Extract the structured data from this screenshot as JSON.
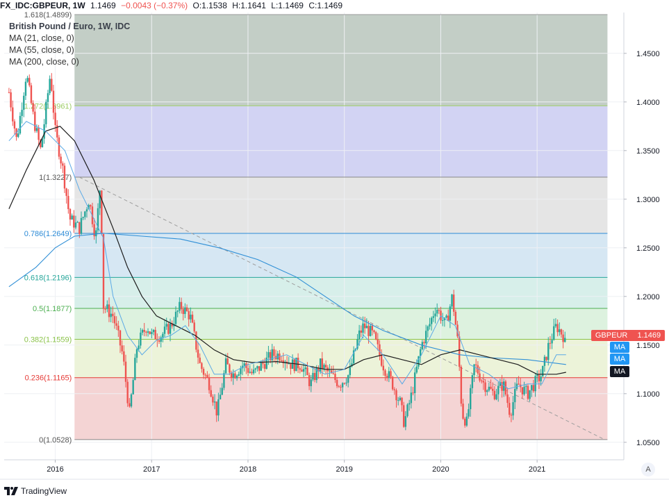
{
  "header": {
    "symbol": "FX_IDC:GBPEUR, 1W",
    "last": "1.1469",
    "change": "−0.0043 (−0.37%)",
    "open": "O:1.1538",
    "high": "H:1.1641",
    "low": "L:1.1469",
    "close": "C:1.1469"
  },
  "legend": {
    "title": "British Pound / Euro, 1W, IDC",
    "ma1": "MA (21, close, 0)",
    "ma2": "MA (55, close, 0)",
    "ma3": "MA (200, close, 0)"
  },
  "price_tag": {
    "symbol": "GBPEUR",
    "value": "1.1469"
  },
  "ma_tags": [
    "MA",
    "MA",
    "MA"
  ],
  "footer": {
    "brand": "TradingView"
  },
  "axis_mode_button": "A",
  "colors": {
    "up": "#26a69a",
    "down": "#ef5350",
    "ma21": "#5aa9e6",
    "ma55": "#1c1c1c",
    "ma200": "#2f8fd6",
    "price_tag": "#ef5350",
    "ma_tag": "#2196f3"
  },
  "chart_data": {
    "type": "candlestick",
    "title": "British Pound / Euro, 1W, IDC",
    "x_ticks": [
      "2016",
      "2017",
      "2018",
      "2019",
      "2020",
      "2021"
    ],
    "y_ticks": [
      "1.4500",
      "1.4000",
      "1.3500",
      "1.3000",
      "1.2500",
      "1.2000",
      "1.1500",
      "1.1000",
      "1.0500"
    ],
    "ylim": [
      1.032,
      1.492
    ],
    "fib_levels": [
      {
        "label": "1.618(1.4899)",
        "value": 1.4899,
        "band": "#c3cec6",
        "line": "#999999"
      },
      {
        "label": "1.272(1.3961)",
        "value": 1.3961,
        "band": "#d2d3f3",
        "line": "#9ccc65"
      },
      {
        "label": "1(1.3227)",
        "value": 1.3227,
        "band": "#e5e5e5",
        "line": "#888888"
      },
      {
        "label": "0.786(1.2649)",
        "value": 1.2649,
        "band": "#d6e7f3",
        "line": "#2b8ad6"
      },
      {
        "label": "0.618(1.2196)",
        "value": 1.2196,
        "band": "#d7efea",
        "line": "#26a69a"
      },
      {
        "label": "0.5(1.1877)",
        "value": 1.1877,
        "band": "#ddf2df",
        "line": "#4caf50"
      },
      {
        "label": "0.382(1.1559)",
        "value": 1.1559,
        "band": "#ecf3d9",
        "line": "#8bc34a"
      },
      {
        "label": "0.236(1.1165)",
        "value": 1.1165,
        "band": "#f4d4d4",
        "line": "#e53935"
      },
      {
        "label": "0(1.0528)",
        "value": 1.0528,
        "band": "",
        "line": "#888888"
      }
    ],
    "trend_line": {
      "from": [
        2016.25,
        1.3227
      ],
      "to": [
        2021.7,
        1.0528
      ]
    },
    "price_path": [
      [
        2015.52,
        1.41
      ],
      [
        2015.6,
        1.36
      ],
      [
        2015.7,
        1.43
      ],
      [
        2015.78,
        1.38
      ],
      [
        2015.85,
        1.35
      ],
      [
        2015.95,
        1.43
      ],
      [
        2016.0,
        1.37
      ],
      [
        2016.08,
        1.33
      ],
      [
        2016.15,
        1.28
      ],
      [
        2016.25,
        1.27
      ],
      [
        2016.35,
        1.3
      ],
      [
        2016.42,
        1.26
      ],
      [
        2016.47,
        1.32
      ],
      [
        2016.5,
        1.19
      ],
      [
        2016.6,
        1.18
      ],
      [
        2016.7,
        1.14
      ],
      [
        2016.77,
        1.08
      ],
      [
        2016.85,
        1.15
      ],
      [
        2016.95,
        1.17
      ],
      [
        2017.0,
        1.16
      ],
      [
        2017.1,
        1.16
      ],
      [
        2017.2,
        1.17
      ],
      [
        2017.3,
        1.19
      ],
      [
        2017.4,
        1.18
      ],
      [
        2017.5,
        1.13
      ],
      [
        2017.6,
        1.11
      ],
      [
        2017.68,
        1.08
      ],
      [
        2017.77,
        1.13
      ],
      [
        2017.85,
        1.12
      ],
      [
        2017.95,
        1.13
      ],
      [
        2018.05,
        1.12
      ],
      [
        2018.15,
        1.13
      ],
      [
        2018.25,
        1.14
      ],
      [
        2018.35,
        1.14
      ],
      [
        2018.45,
        1.13
      ],
      [
        2018.55,
        1.13
      ],
      [
        2018.65,
        1.11
      ],
      [
        2018.75,
        1.13
      ],
      [
        2018.85,
        1.12
      ],
      [
        2018.95,
        1.11
      ],
      [
        2019.05,
        1.12
      ],
      [
        2019.15,
        1.16
      ],
      [
        2019.2,
        1.17
      ],
      [
        2019.3,
        1.16
      ],
      [
        2019.4,
        1.13
      ],
      [
        2019.5,
        1.11
      ],
      [
        2019.58,
        1.09
      ],
      [
        2019.62,
        1.07
      ],
      [
        2019.7,
        1.1
      ],
      [
        2019.8,
        1.15
      ],
      [
        2019.88,
        1.17
      ],
      [
        2019.95,
        1.19
      ],
      [
        2020.05,
        1.17
      ],
      [
        2020.12,
        1.2
      ],
      [
        2020.18,
        1.15
      ],
      [
        2020.22,
        1.08
      ],
      [
        2020.27,
        1.07
      ],
      [
        2020.35,
        1.13
      ],
      [
        2020.45,
        1.11
      ],
      [
        2020.55,
        1.1
      ],
      [
        2020.65,
        1.11
      ],
      [
        2020.72,
        1.08
      ],
      [
        2020.8,
        1.11
      ],
      [
        2020.9,
        1.1
      ],
      [
        2020.97,
        1.11
      ],
      [
        2021.05,
        1.12
      ],
      [
        2021.12,
        1.15
      ],
      [
        2021.2,
        1.17
      ],
      [
        2021.27,
        1.16
      ],
      [
        2021.3,
        1.147
      ]
    ],
    "ma21_path": [
      [
        2015.52,
        1.36
      ],
      [
        2015.7,
        1.38
      ],
      [
        2015.9,
        1.37
      ],
      [
        2016.1,
        1.35
      ],
      [
        2016.25,
        1.31
      ],
      [
        2016.4,
        1.28
      ],
      [
        2016.5,
        1.26
      ],
      [
        2016.6,
        1.2
      ],
      [
        2016.75,
        1.16
      ],
      [
        2016.9,
        1.14
      ],
      [
        2017.05,
        1.155
      ],
      [
        2017.2,
        1.16
      ],
      [
        2017.35,
        1.17
      ],
      [
        2017.5,
        1.15
      ],
      [
        2017.65,
        1.12
      ],
      [
        2017.8,
        1.12
      ],
      [
        2018.0,
        1.13
      ],
      [
        2018.2,
        1.135
      ],
      [
        2018.4,
        1.14
      ],
      [
        2018.6,
        1.13
      ],
      [
        2018.8,
        1.12
      ],
      [
        2019.0,
        1.125
      ],
      [
        2019.2,
        1.16
      ],
      [
        2019.4,
        1.14
      ],
      [
        2019.6,
        1.11
      ],
      [
        2019.8,
        1.14
      ],
      [
        2020.0,
        1.18
      ],
      [
        2020.15,
        1.17
      ],
      [
        2020.3,
        1.13
      ],
      [
        2020.5,
        1.12
      ],
      [
        2020.7,
        1.105
      ],
      [
        2020.9,
        1.11
      ],
      [
        2021.05,
        1.11
      ],
      [
        2021.2,
        1.14
      ],
      [
        2021.3,
        1.14
      ]
    ],
    "ma55_path": [
      [
        2015.52,
        1.29
      ],
      [
        2015.7,
        1.33
      ],
      [
        2015.9,
        1.37
      ],
      [
        2016.05,
        1.375
      ],
      [
        2016.2,
        1.36
      ],
      [
        2016.4,
        1.32
      ],
      [
        2016.6,
        1.27
      ],
      [
        2016.75,
        1.23
      ],
      [
        2016.9,
        1.2
      ],
      [
        2017.05,
        1.18
      ],
      [
        2017.25,
        1.17
      ],
      [
        2017.45,
        1.16
      ],
      [
        2017.65,
        1.145
      ],
      [
        2017.85,
        1.135
      ],
      [
        2018.05,
        1.132
      ],
      [
        2018.3,
        1.133
      ],
      [
        2018.55,
        1.13
      ],
      [
        2018.8,
        1.125
      ],
      [
        2019.0,
        1.125
      ],
      [
        2019.2,
        1.135
      ],
      [
        2019.4,
        1.14
      ],
      [
        2019.6,
        1.135
      ],
      [
        2019.8,
        1.13
      ],
      [
        2020.0,
        1.14
      ],
      [
        2020.2,
        1.145
      ],
      [
        2020.4,
        1.14
      ],
      [
        2020.6,
        1.135
      ],
      [
        2020.8,
        1.13
      ],
      [
        2021.0,
        1.12
      ],
      [
        2021.2,
        1.12
      ],
      [
        2021.3,
        1.122
      ]
    ],
    "ma200_path": [
      [
        2015.52,
        1.21
      ],
      [
        2015.8,
        1.23
      ],
      [
        2016.0,
        1.25
      ],
      [
        2016.2,
        1.262
      ],
      [
        2016.5,
        1.265
      ],
      [
        2016.9,
        1.262
      ],
      [
        2017.3,
        1.259
      ],
      [
        2017.7,
        1.25
      ],
      [
        2018.1,
        1.238
      ],
      [
        2018.5,
        1.22
      ],
      [
        2018.8,
        1.2
      ],
      [
        2019.1,
        1.18
      ],
      [
        2019.4,
        1.165
      ],
      [
        2019.8,
        1.15
      ],
      [
        2020.2,
        1.14
      ],
      [
        2020.5,
        1.137
      ],
      [
        2020.9,
        1.135
      ],
      [
        2021.3,
        1.13
      ]
    ]
  }
}
